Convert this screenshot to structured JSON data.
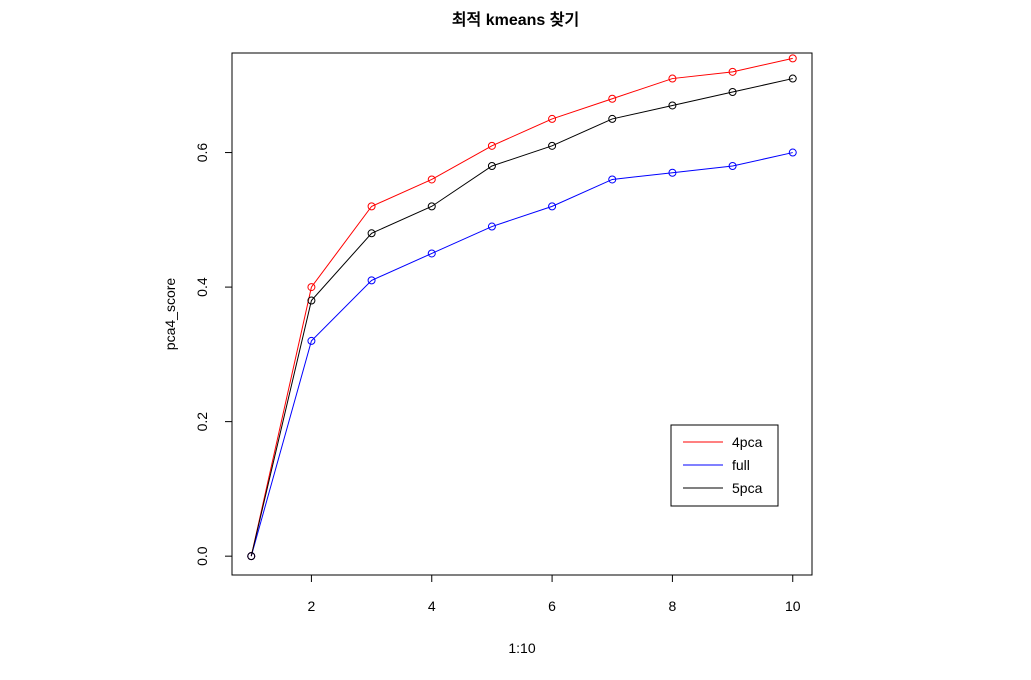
{
  "chart_data": {
    "type": "line",
    "title": "최적 kmeans 찾기",
    "xlabel": "1:10",
    "ylabel": "pca4_score",
    "x": [
      1,
      2,
      3,
      4,
      5,
      6,
      7,
      8,
      9,
      10
    ],
    "xlim": [
      0.68,
      10.32
    ],
    "ylim": [
      -0.028,
      0.748
    ],
    "xticks": [
      2,
      4,
      6,
      8,
      10
    ],
    "yticks": [
      0.0,
      0.2,
      0.4,
      0.6
    ],
    "xtick_labels": [
      "2",
      "4",
      "6",
      "8",
      "10"
    ],
    "ytick_labels": [
      "0.0",
      "0.2",
      "0.4",
      "0.6"
    ],
    "grid": false,
    "legend_position": "bottom-right",
    "series": [
      {
        "name": "4pca",
        "color": "#ff0000",
        "values": [
          0.0,
          0.4,
          0.52,
          0.56,
          0.61,
          0.65,
          0.68,
          0.71,
          0.72,
          0.74
        ]
      },
      {
        "name": "full",
        "color": "#0000ff",
        "values": [
          0.0,
          0.32,
          0.41,
          0.45,
          0.49,
          0.52,
          0.56,
          0.57,
          0.58,
          0.6
        ]
      },
      {
        "name": "5pca",
        "color": "#000000",
        "values": [
          0.0,
          0.38,
          0.48,
          0.52,
          0.58,
          0.61,
          0.65,
          0.67,
          0.69,
          0.71
        ]
      }
    ]
  }
}
